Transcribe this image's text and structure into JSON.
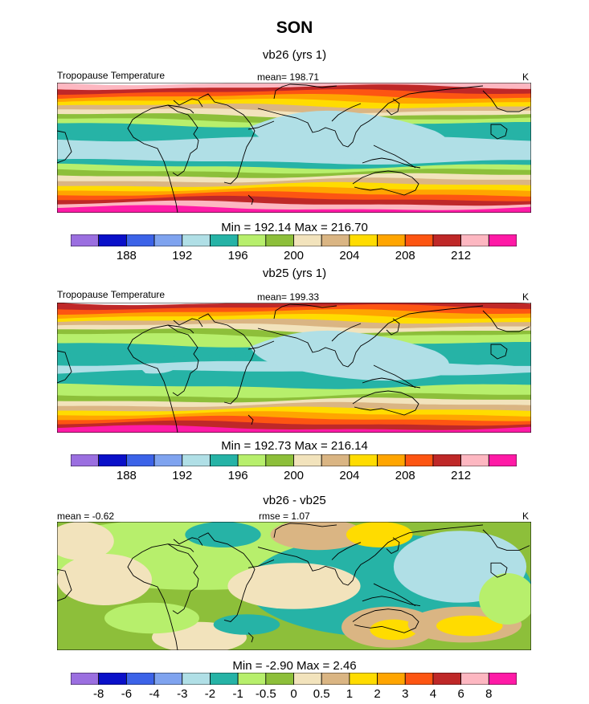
{
  "page_title": "SON",
  "palette": [
    "#9b6fe0",
    "#0a10c9",
    "#3c63e8",
    "#7fa3ef",
    "#b0dfe6",
    "#26b3a6",
    "#b7ef6c",
    "#8dbf3a",
    "#f2e3bc",
    "#dab583",
    "#ffdc00",
    "#ffa500",
    "#fd5512",
    "#bf2828",
    "#fdb7c1",
    "#ff1aa6"
  ],
  "chart_data": [
    {
      "type": "heatmap",
      "subtitle": "vb26 (yrs 1)",
      "variable": "Tropopause Temperature",
      "mean_label": "mean= 198.71",
      "units": "K",
      "min_max": "Min = 192.14 Max = 216.70",
      "levels": [
        186,
        188,
        190,
        192,
        194,
        196,
        198,
        200,
        202,
        204,
        206,
        208,
        210,
        212,
        214
      ],
      "tick_labels": [
        "188",
        "192",
        "196",
        "200",
        "204",
        "208",
        "212"
      ],
      "lat_band_indices": [
        14,
        13,
        12,
        11,
        10,
        9,
        8,
        7,
        6,
        5,
        5,
        5,
        4,
        4,
        4,
        4,
        4,
        5,
        6,
        7,
        8,
        9,
        10,
        11,
        12,
        13,
        14,
        15
      ]
    },
    {
      "type": "heatmap",
      "subtitle": "vb25 (yrs 1)",
      "variable": "Tropopause Temperature",
      "mean_label": "mean= 199.33",
      "units": "K",
      "min_max": "Min = 192.73 Max = 216.14",
      "levels": [
        186,
        188,
        190,
        192,
        194,
        196,
        198,
        200,
        202,
        204,
        206,
        208,
        210,
        212,
        214
      ],
      "tick_labels": [
        "188",
        "192",
        "196",
        "200",
        "204",
        "208",
        "212"
      ],
      "lat_band_indices": [
        13,
        12,
        11,
        10,
        9,
        8,
        7,
        6,
        6,
        5,
        5,
        5,
        5,
        4,
        4,
        5,
        5,
        5,
        6,
        6,
        7,
        8,
        9,
        10,
        11,
        12,
        13,
        15
      ]
    },
    {
      "type": "heatmap",
      "subtitle": "vb26 - vb25",
      "left_label": "mean =  -0.62",
      "center_label": "rmse =   1.07",
      "units": "K",
      "min_max": "Min =  -2.90 Max =   2.46",
      "levels": [
        -8,
        -6,
        -4,
        -3,
        -2,
        -1,
        -0.5,
        0,
        0.5,
        1,
        2,
        3,
        4,
        6,
        8
      ],
      "tick_labels": [
        "-8",
        "-6",
        "-4",
        "-3",
        "-2",
        "-1",
        "-0.5",
        "0",
        "0.5",
        "1",
        "2",
        "3",
        "4",
        "6",
        "8"
      ]
    }
  ]
}
